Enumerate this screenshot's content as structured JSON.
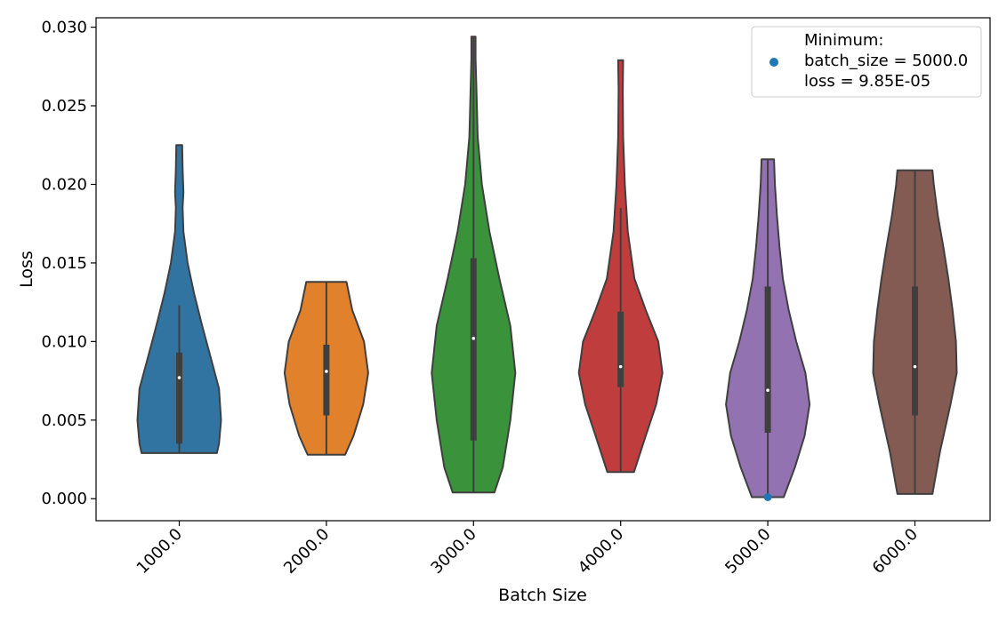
{
  "chart_data": {
    "type": "violin",
    "xlabel": "Batch Size",
    "ylabel": "Loss",
    "ylim": [
      -0.0014,
      0.0306
    ],
    "y_ticks": [
      "0.000",
      "0.005",
      "0.010",
      "0.015",
      "0.020",
      "0.025",
      "0.030"
    ],
    "grid": false,
    "legend_position": "top-right",
    "legend": {
      "marker_color": "#1f77b4",
      "lines": [
        "Minimum:",
        "batch_size = 5000.0",
        "loss = 9.85E-05"
      ]
    },
    "minimum_point": {
      "x": "5000.0",
      "y": 9.85e-05
    },
    "series": [
      {
        "category": "1000.0",
        "color": "#3274a1",
        "min": 0.0029,
        "q1": 0.0035,
        "median": 0.0077,
        "q3": 0.0093,
        "whisker_high": 0.0123,
        "max": 0.0225,
        "profile": [
          [
            0.0029,
            0.9
          ],
          [
            0.0035,
            0.95
          ],
          [
            0.005,
            1.0
          ],
          [
            0.007,
            0.95
          ],
          [
            0.009,
            0.75
          ],
          [
            0.011,
            0.55
          ],
          [
            0.013,
            0.36
          ],
          [
            0.015,
            0.2
          ],
          [
            0.017,
            0.1
          ],
          [
            0.0185,
            0.08
          ],
          [
            0.0195,
            0.1
          ],
          [
            0.021,
            0.08
          ],
          [
            0.0225,
            0.07
          ]
        ]
      },
      {
        "category": "2000.0",
        "color": "#e1812c",
        "min": 0.0028,
        "q1": 0.0053,
        "median": 0.0081,
        "q3": 0.0098,
        "whisker_high": 0.0138,
        "max": 0.0138,
        "profile": [
          [
            0.0028,
            0.45
          ],
          [
            0.004,
            0.65
          ],
          [
            0.006,
            0.88
          ],
          [
            0.008,
            1.0
          ],
          [
            0.01,
            0.9
          ],
          [
            0.012,
            0.62
          ],
          [
            0.0138,
            0.48
          ]
        ]
      },
      {
        "category": "3000.0",
        "color": "#3a923a",
        "min": 0.0004,
        "q1": 0.0037,
        "median": 0.0102,
        "q3": 0.0153,
        "whisker_high": 0.0294,
        "max": 0.0294,
        "profile": [
          [
            0.0004,
            0.5
          ],
          [
            0.002,
            0.7
          ],
          [
            0.005,
            0.88
          ],
          [
            0.008,
            1.0
          ],
          [
            0.011,
            0.88
          ],
          [
            0.014,
            0.62
          ],
          [
            0.017,
            0.38
          ],
          [
            0.02,
            0.2
          ],
          [
            0.023,
            0.1
          ],
          [
            0.026,
            0.07
          ],
          [
            0.028,
            0.05
          ],
          [
            0.0294,
            0.05
          ]
        ]
      },
      {
        "category": "4000.0",
        "color": "#c03d3e",
        "min": 0.0017,
        "q1": 0.0071,
        "median": 0.0084,
        "q3": 0.0119,
        "whisker_high": 0.0185,
        "max": 0.0279,
        "profile": [
          [
            0.0017,
            0.32
          ],
          [
            0.004,
            0.6
          ],
          [
            0.006,
            0.85
          ],
          [
            0.008,
            1.0
          ],
          [
            0.01,
            0.9
          ],
          [
            0.012,
            0.6
          ],
          [
            0.014,
            0.33
          ],
          [
            0.017,
            0.17
          ],
          [
            0.02,
            0.1
          ],
          [
            0.023,
            0.06
          ],
          [
            0.026,
            0.05
          ],
          [
            0.0279,
            0.06
          ]
        ]
      },
      {
        "category": "5000.0",
        "color": "#9372b2",
        "min": 0.0001,
        "q1": 0.0042,
        "median": 0.0069,
        "q3": 0.0135,
        "whisker_high": 0.0216,
        "max": 0.0216,
        "profile": [
          [
            0.0001,
            0.38
          ],
          [
            0.002,
            0.65
          ],
          [
            0.004,
            0.88
          ],
          [
            0.006,
            1.0
          ],
          [
            0.008,
            0.9
          ],
          [
            0.01,
            0.68
          ],
          [
            0.012,
            0.5
          ],
          [
            0.014,
            0.36
          ],
          [
            0.016,
            0.28
          ],
          [
            0.018,
            0.22
          ],
          [
            0.02,
            0.17
          ],
          [
            0.0216,
            0.15
          ]
        ]
      },
      {
        "category": "6000.0",
        "color": "#845b53",
        "min": 0.0003,
        "q1": 0.0053,
        "median": 0.0084,
        "q3": 0.0135,
        "whisker_high": 0.0209,
        "max": 0.0209,
        "profile": [
          [
            0.0003,
            0.42
          ],
          [
            0.003,
            0.6
          ],
          [
            0.006,
            0.85
          ],
          [
            0.008,
            1.0
          ],
          [
            0.01,
            0.98
          ],
          [
            0.012,
            0.9
          ],
          [
            0.014,
            0.8
          ],
          [
            0.016,
            0.68
          ],
          [
            0.018,
            0.55
          ],
          [
            0.02,
            0.45
          ],
          [
            0.0209,
            0.42
          ]
        ]
      }
    ]
  }
}
